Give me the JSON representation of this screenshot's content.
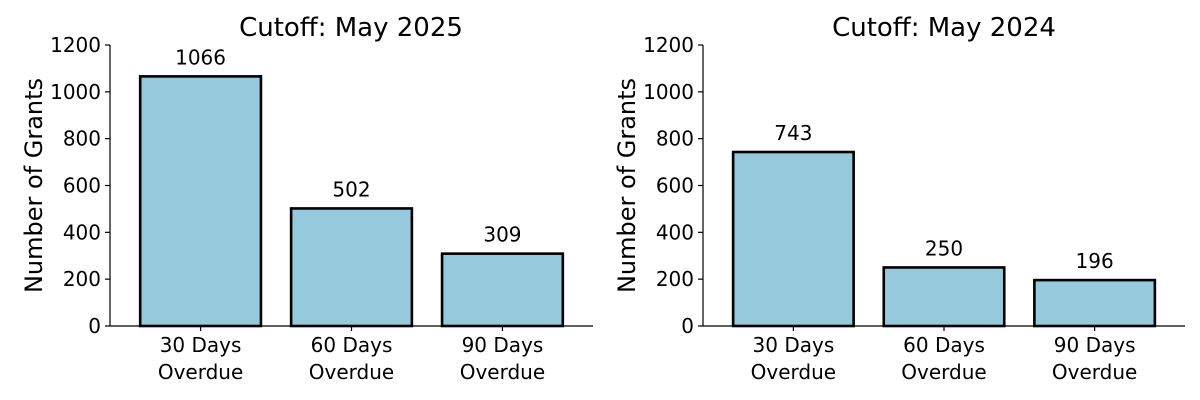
{
  "chart_data": [
    {
      "type": "bar",
      "title": "Cutoff: May 2025",
      "xlabel": "",
      "ylabel": "Number of Grants",
      "categories": [
        [
          "30 Days",
          "Overdue"
        ],
        [
          "60 Days",
          "Overdue"
        ],
        [
          "90 Days",
          "Overdue"
        ]
      ],
      "values": [
        1066,
        502,
        309
      ],
      "data_labels": [
        "1066",
        "502",
        "309"
      ],
      "ylim": [
        0,
        1200
      ],
      "yticks": [
        0,
        200,
        400,
        600,
        800,
        1000,
        1200
      ],
      "bar_color": "#96c9dc",
      "edge_color": "#000000",
      "grid": false,
      "legend": "none"
    },
    {
      "type": "bar",
      "title": "Cutoff: May 2024",
      "xlabel": "",
      "ylabel": "Number of Grants",
      "categories": [
        [
          "30 Days",
          "Overdue"
        ],
        [
          "60 Days",
          "Overdue"
        ],
        [
          "90 Days",
          "Overdue"
        ]
      ],
      "values": [
        743,
        250,
        196
      ],
      "data_labels": [
        "743",
        "250",
        "196"
      ],
      "ylim": [
        0,
        1200
      ],
      "yticks": [
        0,
        200,
        400,
        600,
        800,
        1000,
        1200
      ],
      "bar_color": "#96c9dc",
      "edge_color": "#000000",
      "grid": false,
      "legend": "none"
    }
  ]
}
